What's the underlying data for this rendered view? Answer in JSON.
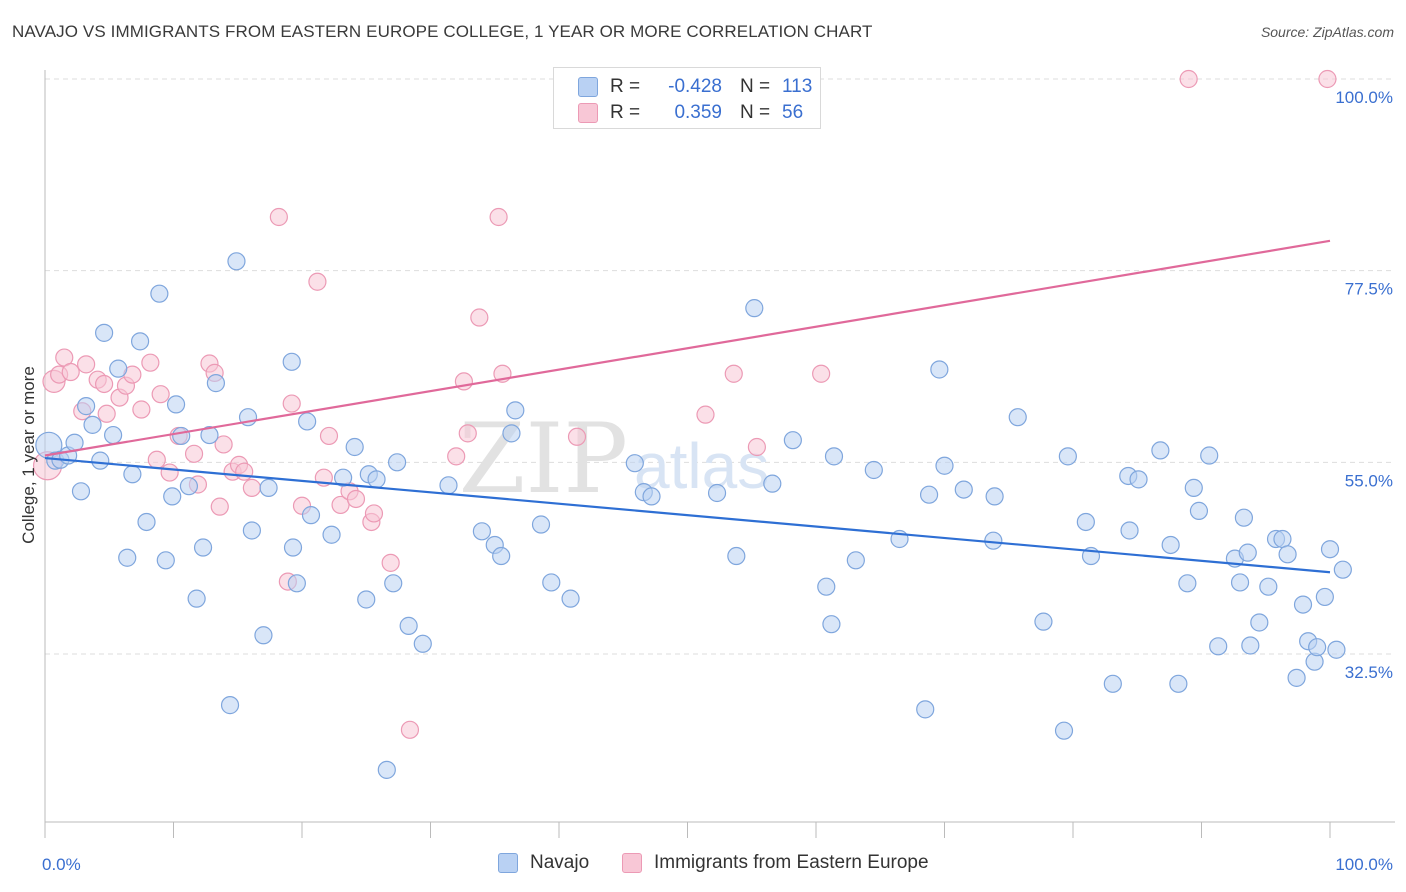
{
  "title": "NAVAJO VS IMMIGRANTS FROM EASTERN EUROPE COLLEGE, 1 YEAR OR MORE CORRELATION CHART",
  "source": "Source: ZipAtlas.com",
  "watermark": {
    "zip": "ZIP",
    "atlas": "atlas"
  },
  "legend": {
    "rows": [
      {
        "r_label": "R =",
        "r_value": "-0.428",
        "n_label": "N =",
        "n_value": "113"
      },
      {
        "r_label": "R =",
        "r_value": "0.359",
        "n_label": "N =",
        "n_value": "56"
      }
    ]
  },
  "colors": {
    "navajo_fill": "#b9d1f3",
    "navajo_stroke": "#7fa6dd",
    "navajo_line": "#2e6fd4",
    "ee_fill": "#f8c7d6",
    "ee_stroke": "#ec9ab5",
    "ee_line": "#e0699a",
    "tick_label": "#3a6fd0",
    "grid": "#dddddd"
  },
  "chart_data": {
    "type": "scatter",
    "title": "NAVAJO VS IMMIGRANTS FROM EASTERN EUROPE COLLEGE, 1 YEAR OR MORE CORRELATION CHART",
    "xlabel": "",
    "ylabel": "College, 1 year or more",
    "xlim": [
      0,
      100
    ],
    "ylim": [
      10,
      102
    ],
    "x_tick_labels": [
      "0.0%",
      "100.0%"
    ],
    "y_ticks": [
      32.5,
      55.0,
      77.5,
      100.0
    ],
    "y_tick_labels": [
      "32.5%",
      "55.0%",
      "77.5%",
      "100.0%"
    ],
    "grid": true,
    "legend_position": "top-center",
    "series": [
      {
        "name": "Navajo",
        "r": -0.428,
        "n": 113,
        "trend": {
          "x": [
            0,
            100
          ],
          "y": [
            55.5,
            42.1
          ]
        },
        "points": [
          [
            0.3,
            57.0
          ],
          [
            0.8,
            55.2
          ],
          [
            1.2,
            55.3
          ],
          [
            1.8,
            55.8
          ],
          [
            2.3,
            57.3
          ],
          [
            2.8,
            51.6
          ],
          [
            3.2,
            61.6
          ],
          [
            3.7,
            59.4
          ],
          [
            4.3,
            55.2
          ],
          [
            4.6,
            70.2
          ],
          [
            5.3,
            58.2
          ],
          [
            5.7,
            66.0
          ],
          [
            6.4,
            43.8
          ],
          [
            6.8,
            53.6
          ],
          [
            7.4,
            69.2
          ],
          [
            7.9,
            48.0
          ],
          [
            8.9,
            74.8
          ],
          [
            9.4,
            43.5
          ],
          [
            9.9,
            51.0
          ],
          [
            10.2,
            61.8
          ],
          [
            10.6,
            58.1
          ],
          [
            11.2,
            52.2
          ],
          [
            11.8,
            39.0
          ],
          [
            12.3,
            45.0
          ],
          [
            12.8,
            58.2
          ],
          [
            13.3,
            64.3
          ],
          [
            14.4,
            26.5
          ],
          [
            14.9,
            78.6
          ],
          [
            15.8,
            60.3
          ],
          [
            16.1,
            47.0
          ],
          [
            17.0,
            34.7
          ],
          [
            17.4,
            52.0
          ],
          [
            19.2,
            66.8
          ],
          [
            19.3,
            45.0
          ],
          [
            19.6,
            40.8
          ],
          [
            20.4,
            59.8
          ],
          [
            20.7,
            48.8
          ],
          [
            22.3,
            46.5
          ],
          [
            23.2,
            53.2
          ],
          [
            24.1,
            56.8
          ],
          [
            25.0,
            38.9
          ],
          [
            25.2,
            53.6
          ],
          [
            25.8,
            53.0
          ],
          [
            26.6,
            18.9
          ],
          [
            27.1,
            40.8
          ],
          [
            27.4,
            55.0
          ],
          [
            28.3,
            35.8
          ],
          [
            29.4,
            33.7
          ],
          [
            31.4,
            52.3
          ],
          [
            34.0,
            46.9
          ],
          [
            35.0,
            45.3
          ],
          [
            35.5,
            44.0
          ],
          [
            36.3,
            58.4
          ],
          [
            36.6,
            61.1
          ],
          [
            38.6,
            47.7
          ],
          [
            39.4,
            40.9
          ],
          [
            40.9,
            39.0
          ],
          [
            45.9,
            54.9
          ],
          [
            46.6,
            51.5
          ],
          [
            47.2,
            51.0
          ],
          [
            52.3,
            51.4
          ],
          [
            53.8,
            44.0
          ],
          [
            55.2,
            73.1
          ],
          [
            56.6,
            52.5
          ],
          [
            58.2,
            57.6
          ],
          [
            60.8,
            40.4
          ],
          [
            61.2,
            36.0
          ],
          [
            61.4,
            55.7
          ],
          [
            63.1,
            43.5
          ],
          [
            64.5,
            54.1
          ],
          [
            66.5,
            46.0
          ],
          [
            68.5,
            26.0
          ],
          [
            68.8,
            51.2
          ],
          [
            69.6,
            65.9
          ],
          [
            70.0,
            54.6
          ],
          [
            71.5,
            51.8
          ],
          [
            73.8,
            45.8
          ],
          [
            73.9,
            51.0
          ],
          [
            75.7,
            60.3
          ],
          [
            77.7,
            36.3
          ],
          [
            79.3,
            23.5
          ],
          [
            79.6,
            55.7
          ],
          [
            81.0,
            48.0
          ],
          [
            81.4,
            44.0
          ],
          [
            83.1,
            29.0
          ],
          [
            84.3,
            53.4
          ],
          [
            84.4,
            47.0
          ],
          [
            85.1,
            53.0
          ],
          [
            86.8,
            56.4
          ],
          [
            87.6,
            45.3
          ],
          [
            88.2,
            29.0
          ],
          [
            88.9,
            40.8
          ],
          [
            89.4,
            52.0
          ],
          [
            89.8,
            49.3
          ],
          [
            90.6,
            55.8
          ],
          [
            91.3,
            33.4
          ],
          [
            92.6,
            43.7
          ],
          [
            93.0,
            40.9
          ],
          [
            93.3,
            48.5
          ],
          [
            93.6,
            44.4
          ],
          [
            93.8,
            33.5
          ],
          [
            94.5,
            36.2
          ],
          [
            95.2,
            40.4
          ],
          [
            95.8,
            46.0
          ],
          [
            96.3,
            46.0
          ],
          [
            96.7,
            44.2
          ],
          [
            97.4,
            29.7
          ],
          [
            97.9,
            38.3
          ],
          [
            98.3,
            34.0
          ],
          [
            98.8,
            31.6
          ],
          [
            99.0,
            33.3
          ],
          [
            99.6,
            39.2
          ],
          [
            100.0,
            44.8
          ],
          [
            100.5,
            33.0
          ],
          [
            101.0,
            42.4
          ]
        ]
      },
      {
        "name": "Immigrants from Eastern Europe",
        "r": 0.359,
        "n": 56,
        "trend": {
          "x": [
            0,
            100
          ],
          "y": [
            55.8,
            81.0
          ]
        },
        "points": [
          [
            0.2,
            54.6
          ],
          [
            0.7,
            64.5
          ],
          [
            1.1,
            65.3
          ],
          [
            1.5,
            67.3
          ],
          [
            2.0,
            65.6
          ],
          [
            2.9,
            61.0
          ],
          [
            3.2,
            66.5
          ],
          [
            4.1,
            64.7
          ],
          [
            4.6,
            64.2
          ],
          [
            4.8,
            60.7
          ],
          [
            5.8,
            62.6
          ],
          [
            6.3,
            64.0
          ],
          [
            6.8,
            65.3
          ],
          [
            7.5,
            61.2
          ],
          [
            8.2,
            66.7
          ],
          [
            8.7,
            55.3
          ],
          [
            9.0,
            63.0
          ],
          [
            9.7,
            53.8
          ],
          [
            10.4,
            58.1
          ],
          [
            11.6,
            56.0
          ],
          [
            11.9,
            52.4
          ],
          [
            12.8,
            66.6
          ],
          [
            13.2,
            65.5
          ],
          [
            13.6,
            49.8
          ],
          [
            13.9,
            57.1
          ],
          [
            14.6,
            53.9
          ],
          [
            15.1,
            54.7
          ],
          [
            15.5,
            53.9
          ],
          [
            16.1,
            52.0
          ],
          [
            18.2,
            83.8
          ],
          [
            18.9,
            41.0
          ],
          [
            19.2,
            61.9
          ],
          [
            20.0,
            49.9
          ],
          [
            21.2,
            76.2
          ],
          [
            21.7,
            53.2
          ],
          [
            22.1,
            58.1
          ],
          [
            23.0,
            50.0
          ],
          [
            23.7,
            51.6
          ],
          [
            24.2,
            50.7
          ],
          [
            25.4,
            48.0
          ],
          [
            25.6,
            49.0
          ],
          [
            26.9,
            43.2
          ],
          [
            28.4,
            23.6
          ],
          [
            32.0,
            55.7
          ],
          [
            32.6,
            64.5
          ],
          [
            32.9,
            58.4
          ],
          [
            33.8,
            72.0
          ],
          [
            35.3,
            83.8
          ],
          [
            35.6,
            65.4
          ],
          [
            41.4,
            58.0
          ],
          [
            51.4,
            60.6
          ],
          [
            53.6,
            65.4
          ],
          [
            55.4,
            56.8
          ],
          [
            60.4,
            65.4
          ],
          [
            89.0,
            100.0
          ],
          [
            99.8,
            100.0
          ]
        ]
      }
    ]
  },
  "y_axis_label": "College, 1 year or more",
  "x_tick_labels": [
    "0.0%",
    "100.0%"
  ],
  "y_tick_labels": [
    "100.0%",
    "77.5%",
    "55.0%",
    "32.5%"
  ],
  "bottom_legend": [
    "Navajo",
    "Immigrants from Eastern Europe"
  ]
}
